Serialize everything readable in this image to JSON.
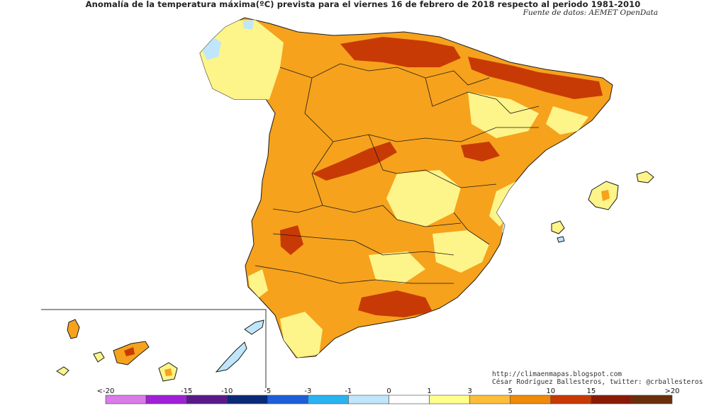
{
  "header": {
    "title": "Anomalía de la temperatura máxima(ºC) prevista para el viernes 16 de febrero de 2018 respecto al periodo 1981-2010",
    "source": "Fuente de datos: AEMET OpenData"
  },
  "credits": {
    "blog": "http://climaenmapas.blogspot.com",
    "author": "César Rodríguez Ballesteros, twitter: @crballesteros"
  },
  "legend": {
    "labels": [
      "<-20",
      "-15",
      "-10",
      "-5",
      "-3",
      "-1",
      "0",
      "1",
      "3",
      "5",
      "10",
      "15",
      ">20"
    ],
    "colors": [
      "#d97be8",
      "#a020d8",
      "#5a1a8a",
      "#0a2a78",
      "#1e5ed8",
      "#28b4f0",
      "#bfe6fa",
      "#ffffff",
      "#ffff8c",
      "#fbbd3a",
      "#f08a0a",
      "#c83a05",
      "#8a1a05",
      "#6b2e0d"
    ]
  }
}
